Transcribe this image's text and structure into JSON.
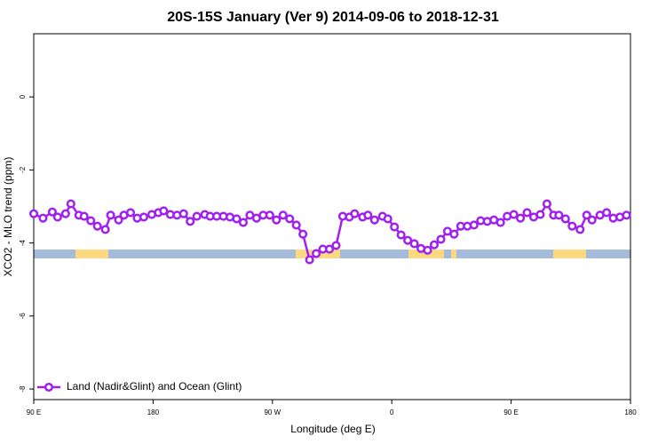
{
  "chart_data": {
    "type": "line",
    "title": "20S-15S January (Ver 9)   2014-09-06 to 2018-12-31",
    "x_label": "Longitude (deg E)",
    "y_label": "XCO2 - MLO trend (ppm)",
    "xlim": [
      90,
      540
    ],
    "xticks": [
      {
        "value": 90,
        "label": "90 E"
      },
      180,
      {
        "value": 270,
        "label": "90 W"
      },
      {
        "value": 360,
        "label": "0"
      },
      {
        "value": 450,
        "label": "90 E"
      },
      {
        "value": 540,
        "label": "180"
      }
    ],
    "ylim": [
      -8.29,
      1.73
    ],
    "yticks": [
      0,
      -2,
      -4,
      -6,
      -8
    ],
    "legend": "bottom-left",
    "series": [
      {
        "name": "Land (Nadir&Glint) and Ocean (Glint)",
        "color": "#a020f0",
        "x": [
          90,
          97,
          104,
          108,
          114,
          118,
          124,
          128,
          133,
          138,
          144,
          148,
          154,
          158,
          163,
          168,
          173,
          179,
          184,
          188,
          193,
          198,
          203,
          208,
          213,
          219,
          223,
          228,
          233,
          238,
          243,
          248,
          253,
          258,
          263,
          268,
          273,
          278,
          283,
          288,
          293,
          298,
          303,
          308,
          313,
          318,
          323,
          328,
          332,
          338,
          342,
          347,
          353,
          357,
          362,
          367,
          372,
          377,
          382,
          387,
          392,
          397,
          402,
          407,
          412,
          417,
          422,
          427,
          432,
          437,
          442,
          447,
          452,
          457,
          462,
          467,
          472,
          477,
          482,
          486,
          491,
          496,
          502,
          507,
          511,
          517,
          522,
          527,
          532,
          537
        ],
        "values": [
          -3.2,
          -3.32,
          -3.15,
          -3.29,
          -3.2,
          -2.93,
          -3.24,
          -3.27,
          -3.39,
          -3.54,
          -3.63,
          -3.24,
          -3.37,
          -3.24,
          -3.17,
          -3.32,
          -3.29,
          -3.22,
          -3.17,
          -3.12,
          -3.22,
          -3.24,
          -3.2,
          -3.41,
          -3.27,
          -3.22,
          -3.27,
          -3.27,
          -3.27,
          -3.29,
          -3.34,
          -3.44,
          -3.24,
          -3.32,
          -3.24,
          -3.24,
          -3.37,
          -3.24,
          -3.34,
          -3.51,
          -3.76,
          -4.46,
          -4.29,
          -4.17,
          -4.17,
          -4.07,
          -3.27,
          -3.29,
          -3.2,
          -3.29,
          -3.24,
          -3.37,
          -3.27,
          -3.34,
          -3.56,
          -3.78,
          -3.93,
          -4.02,
          -4.15,
          -4.2,
          -4.05,
          -3.9,
          -3.68,
          -3.76,
          -3.54,
          -3.54,
          -3.51,
          -3.39,
          -3.41,
          -3.37,
          -3.44,
          -3.27,
          -3.22,
          -3.32,
          -3.17,
          -3.29,
          -3.22,
          -2.93,
          -3.24,
          -3.24,
          -3.34,
          -3.54,
          -3.63,
          -3.24,
          -3.37,
          -3.24,
          -3.17,
          -3.32,
          -3.29,
          -3.24
        ]
      }
    ]
  }
}
